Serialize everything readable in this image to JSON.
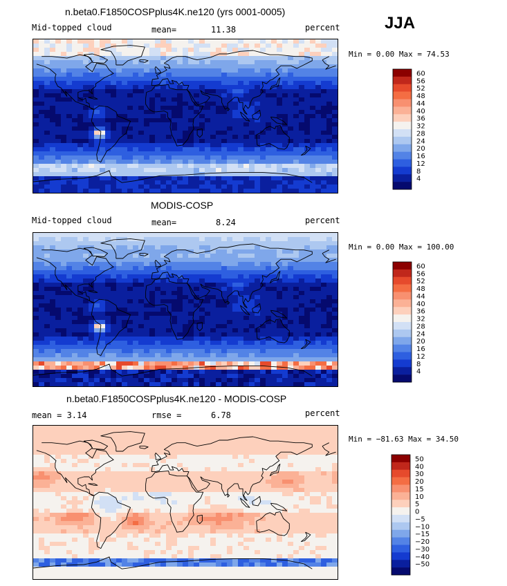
{
  "season": "JJA",
  "chart_data": [
    {
      "type": "heatmap",
      "title": "n.beta0.F1850COSPplus4K.ne120 (yrs 0001-0005)",
      "left_label": "Mid-topped cloud",
      "stat_label": "mean=",
      "stat_value": "11.38",
      "right_label": "percent",
      "min_text": "Min =   0.00 Max =  74.53",
      "colorbar_levels": [
        "60",
        "56",
        "52",
        "48",
        "44",
        "40",
        "36",
        "32",
        "28",
        "24",
        "20",
        "16",
        "12",
        "8",
        "4"
      ],
      "colorbar_colors": [
        "#8b0000",
        "#c0271b",
        "#e64a2c",
        "#f46d43",
        "#f89070",
        "#fbb196",
        "#fdd0bc",
        "#f5f2ee",
        "#d2e0f5",
        "#adc8f0",
        "#7fa7ea",
        "#5383e6",
        "#2e5fe0",
        "#143bd0",
        "#0a1f9e",
        "#050a6e"
      ],
      "field": "model"
    },
    {
      "type": "heatmap",
      "title": "MODIS-COSP",
      "left_label": "Mid-topped cloud",
      "stat_label": "mean=",
      "stat_value": "8.24",
      "right_label": "percent",
      "min_text": "Min =   0.00 Max = 100.00",
      "colorbar_levels": [
        "60",
        "56",
        "52",
        "48",
        "44",
        "40",
        "36",
        "32",
        "28",
        "24",
        "20",
        "16",
        "12",
        "8",
        "4"
      ],
      "colorbar_colors": [
        "#8b0000",
        "#c0271b",
        "#e64a2c",
        "#f46d43",
        "#f89070",
        "#fbb196",
        "#fdd0bc",
        "#f5f2ee",
        "#d2e0f5",
        "#adc8f0",
        "#7fa7ea",
        "#5383e6",
        "#2e5fe0",
        "#143bd0",
        "#0a1f9e",
        "#050a6e"
      ],
      "field": "obs"
    },
    {
      "type": "heatmap",
      "title": "n.beta0.F1850COSPplus4K.ne120 - MODIS-COSP",
      "left_label": "mean =    3.14",
      "stat_label": "rmse =",
      "stat_value": "6.78",
      "right_label": "percent",
      "min_text": "Min = −81.63 Max =  34.50",
      "colorbar_levels": [
        "50",
        "40",
        "30",
        "20",
        "15",
        "10",
        "5",
        "0",
        "−5",
        "−10",
        "−15",
        "−20",
        "−30",
        "−40",
        "−50"
      ],
      "colorbar_colors": [
        "#8b0000",
        "#c0271b",
        "#e64a2c",
        "#f46d43",
        "#f89070",
        "#fbb196",
        "#fdd0bc",
        "#f5f2ee",
        "#d2e0f5",
        "#adc8f0",
        "#7fa7ea",
        "#5383e6",
        "#2e5fe0",
        "#143bd0",
        "#0a1f9e",
        "#050a6e"
      ],
      "field": "diff"
    }
  ]
}
